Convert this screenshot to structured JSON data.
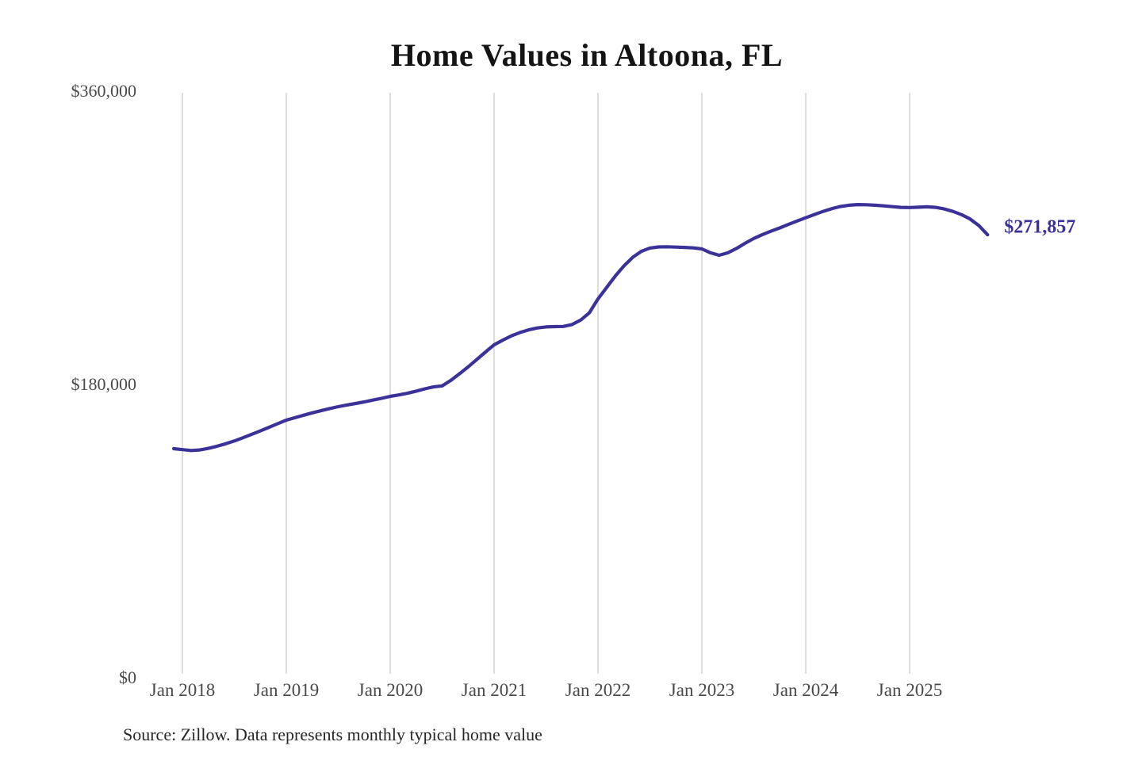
{
  "chart_data": {
    "type": "line",
    "title": "Home Values in Altoona, FL",
    "source_note": "Source: Zillow. Data represents monthly typical home value",
    "end_label": "$271,857",
    "end_value": 271857,
    "line_color": "#3a3199",
    "grid_color": "#c9c9c9",
    "grid": "vertical-only",
    "legend": "none",
    "ylim": [
      0,
      360000
    ],
    "y_ticks": [
      {
        "value": 0,
        "label": "$0"
      },
      {
        "value": 180000,
        "label": "$180,000"
      },
      {
        "value": 360000,
        "label": "$360,000"
      }
    ],
    "x_ticks": [
      "Jan 2018",
      "Jan 2019",
      "Jan 2020",
      "Jan 2021",
      "Jan 2022",
      "Jan 2023",
      "Jan 2024",
      "Jan 2025"
    ],
    "x_start": "Dec 2017",
    "x_end": "Oct 2025",
    "x_unit": "month",
    "values": [
      140600,
      140000,
      139500,
      139800,
      140800,
      142100,
      143600,
      145300,
      147300,
      149400,
      151500,
      153700,
      155900,
      158100,
      159600,
      161100,
      162600,
      163900,
      165200,
      166400,
      167400,
      168300,
      169300,
      170400,
      171500,
      172700,
      173600,
      174600,
      175900,
      177300,
      178500,
      179100,
      182500,
      186500,
      190800,
      195300,
      199900,
      204300,
      207200,
      209800,
      211900,
      213500,
      214700,
      215300,
      215500,
      215600,
      216800,
      219500,
      224000,
      232500,
      239500,
      246500,
      252800,
      258000,
      261700,
      263700,
      264400,
      264500,
      264300,
      264100,
      263800,
      263200,
      260800,
      259300,
      260800,
      263500,
      266700,
      269600,
      272000,
      274100,
      276100,
      278200,
      280300,
      282300,
      284300,
      286200,
      287900,
      289200,
      290000,
      290400,
      290300,
      290000,
      289600,
      289100,
      288700,
      288600,
      288800,
      289000,
      288700,
      287700,
      286200,
      284200,
      281500,
      277500,
      271857
    ]
  }
}
